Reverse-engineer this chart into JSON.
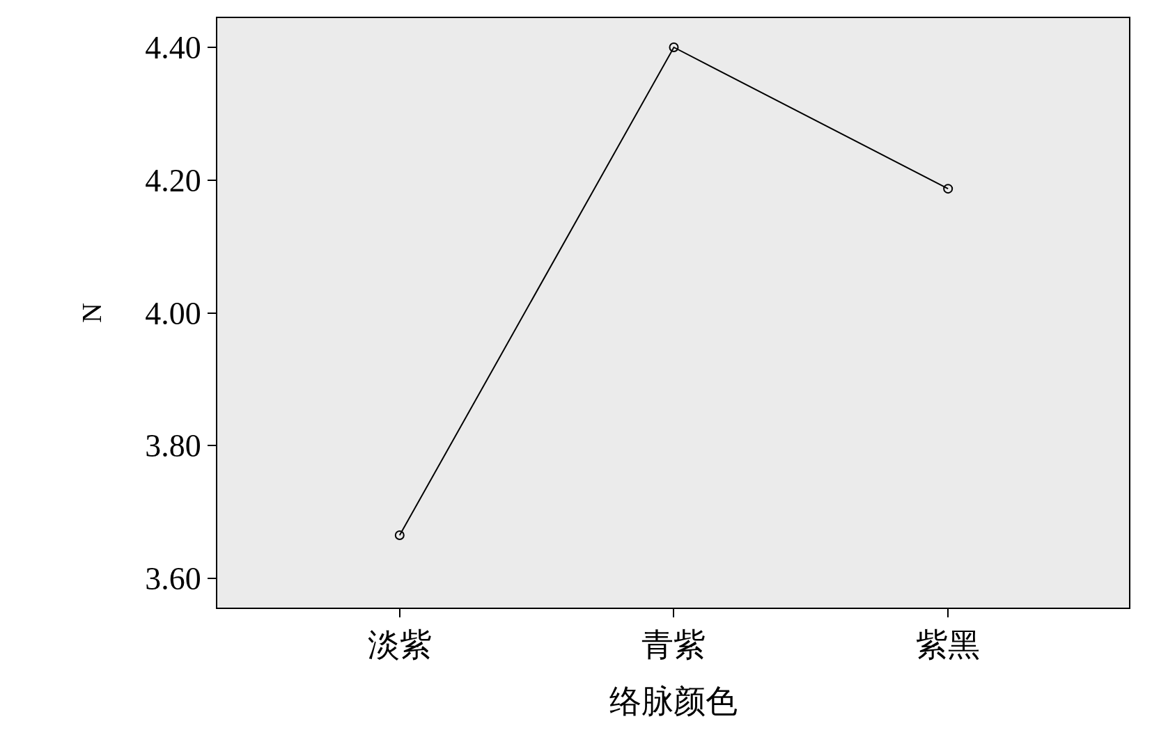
{
  "chart_data": {
    "type": "line",
    "xlabel": "络脉颜色",
    "ylabel": "N",
    "categories": [
      "淡紫",
      "青紫",
      "紫黑"
    ],
    "values": [
      3.665,
      4.4,
      4.187
    ],
    "color": "#000000",
    "marker": "circle",
    "line_style": "solid",
    "grid": false,
    "ylim": [
      3.556,
      4.444
    ],
    "yticks": [
      {
        "value": 3.6,
        "label": "3.60"
      },
      {
        "value": 3.8,
        "label": "3.80"
      },
      {
        "value": 4.0,
        "label": "4.00"
      },
      {
        "value": 4.2,
        "label": "4.20"
      },
      {
        "value": 4.4,
        "label": "4.40"
      }
    ]
  }
}
